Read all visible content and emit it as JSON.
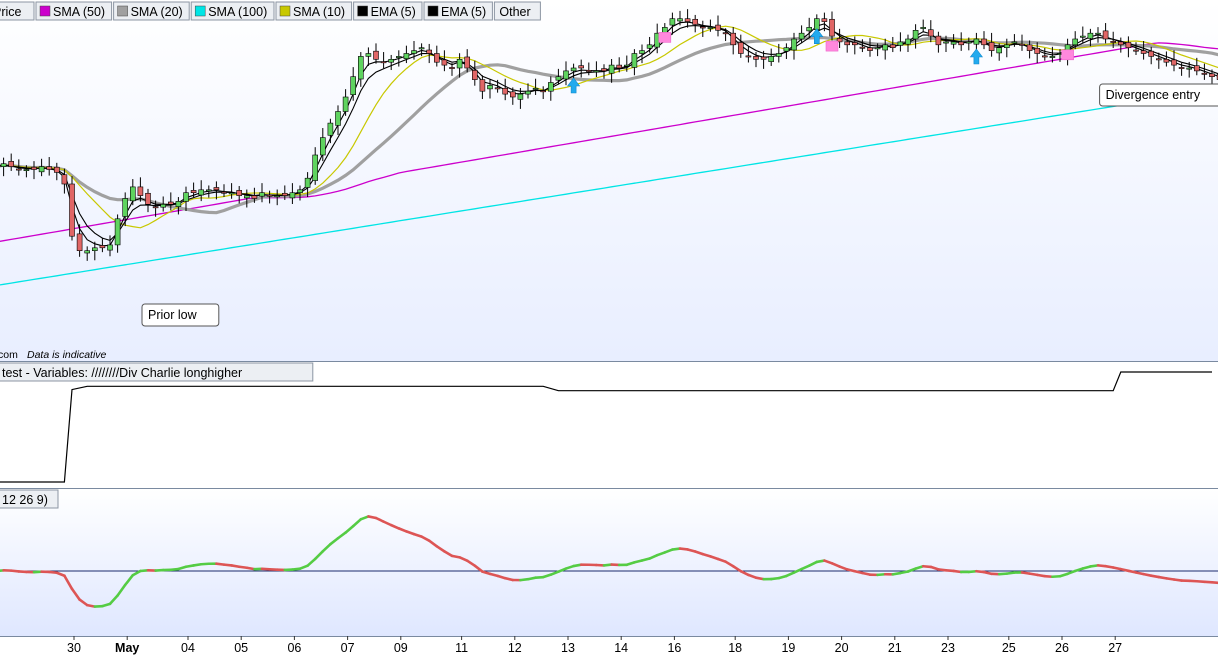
{
  "legend": {
    "items": [
      {
        "label": "Price",
        "color": null
      },
      {
        "label": "SMA (50)",
        "color": "#cc00cc"
      },
      {
        "label": "SMA (20)",
        "color": "#a0a0a0"
      },
      {
        "label": "SMA (100)",
        "color": "#00e5e5"
      },
      {
        "label": "SMA (10)",
        "color": "#c8c800"
      },
      {
        "label": "EMA (5)",
        "color": "#000000"
      },
      {
        "label": "EMA (5)",
        "color": "#000000"
      },
      {
        "label": "Other",
        "color": null
      }
    ]
  },
  "watermark": "com  Data is indicative",
  "test_panel_title": "test - Variables: ////////Div Charlie longhigher",
  "macd_panel_title": "12 26 9)",
  "annotations": [
    {
      "text": "Prior low",
      "bar": 20
    },
    {
      "text": "Divergence entry",
      "bar": 146
    }
  ],
  "colors": {
    "up_candle": "#5fd35f",
    "down_candle": "#e06666",
    "macd_up": "#55cc44",
    "macd_down": "#dd5555",
    "panel_bg": "#ffffff",
    "macd_bg_top": "#ffffff",
    "macd_bg_bottom": "#dfe7ff",
    "arrow_blue": "#22aaee",
    "marker_pink": "#ff88dd"
  },
  "chart_data": {
    "type": "candlestick",
    "x_axis_labels": [
      {
        "label": "30",
        "bar": 5,
        "bold": false
      },
      {
        "label": "May",
        "bar": 12,
        "bold": true
      },
      {
        "label": "04",
        "bar": 20,
        "bold": false
      },
      {
        "label": "05",
        "bar": 27,
        "bold": false
      },
      {
        "label": "06",
        "bar": 34,
        "bold": false
      },
      {
        "label": "07",
        "bar": 41,
        "bold": false
      },
      {
        "label": "09",
        "bar": 48,
        "bold": false
      },
      {
        "label": "11",
        "bar": 56,
        "bold": false
      },
      {
        "label": "12",
        "bar": 63,
        "bold": false
      },
      {
        "label": "13",
        "bar": 70,
        "bold": false
      },
      {
        "label": "14",
        "bar": 77,
        "bold": false
      },
      {
        "label": "16",
        "bar": 84,
        "bold": false
      },
      {
        "label": "18",
        "bar": 92,
        "bold": false
      },
      {
        "label": "19",
        "bar": 99,
        "bold": false
      },
      {
        "label": "20",
        "bar": 106,
        "bold": false
      },
      {
        "label": "21",
        "bar": 113,
        "bold": false
      },
      {
        "label": "23",
        "bar": 120,
        "bold": false
      },
      {
        "label": "25",
        "bar": 128,
        "bold": false
      },
      {
        "label": "26",
        "bar": 135,
        "bold": false
      },
      {
        "label": "27",
        "bar": 142,
        "bold": false
      }
    ],
    "price_range": [
      0,
      100
    ],
    "closes": [
      46,
      47,
      46,
      45,
      45,
      45,
      46,
      45,
      44,
      40,
      22,
      17,
      17,
      18,
      18,
      19,
      28,
      35,
      39,
      36,
      33,
      32,
      33,
      33,
      34,
      37,
      37,
      38,
      38,
      38,
      37,
      37,
      36,
      36,
      35,
      37,
      36,
      36,
      36,
      37,
      38,
      42,
      50,
      56,
      61,
      65,
      70,
      77,
      84,
      85,
      83,
      82,
      83,
      84,
      85,
      86,
      87,
      85,
      82,
      81,
      80,
      83,
      80,
      76,
      72,
      74,
      73,
      71,
      70,
      71,
      72,
      73,
      72,
      75,
      77,
      79,
      80,
      80,
      79,
      79,
      79,
      81,
      80,
      81,
      85,
      86,
      88,
      92,
      94,
      97,
      97,
      96,
      95,
      94,
      94,
      93,
      92,
      88,
      85,
      84,
      83,
      83,
      84,
      85,
      87,
      90,
      92,
      94,
      97,
      96,
      91,
      89,
      88,
      88,
      87,
      86,
      87,
      88,
      87,
      89,
      90,
      93,
      94,
      91,
      88,
      89,
      89,
      88,
      89,
      90,
      88,
      86,
      87,
      88,
      89,
      88,
      86,
      85,
      84,
      84,
      85,
      88,
      90,
      91,
      92,
      92,
      90,
      89,
      88,
      87,
      86,
      85,
      84,
      83,
      82,
      81,
      80,
      80,
      79,
      78,
      77,
      76,
      75,
      74
    ],
    "series": [
      {
        "name": "SMA (50)",
        "color": "#cc00cc"
      },
      {
        "name": "SMA (20)",
        "color": "#a0a0a0"
      },
      {
        "name": "SMA (100)",
        "color": "#00e5e5"
      },
      {
        "name": "SMA (10)",
        "color": "#c8c800"
      },
      {
        "name": "EMA (5)",
        "color": "#000000"
      }
    ],
    "blue_arrows_bars": [
      76,
      108,
      129
    ],
    "pink_markers_bars": [
      88,
      110,
      141
    ],
    "test_indicator": [
      {
        "bar": 0,
        "value": 0
      },
      {
        "bar": 9,
        "value": 0
      },
      {
        "bar": 10,
        "value": 0.84
      },
      {
        "bar": 12,
        "value": 0.87
      },
      {
        "bar": 72,
        "value": 0.87
      },
      {
        "bar": 74,
        "value": 0.83
      },
      {
        "bar": 147,
        "value": 0.83
      },
      {
        "bar": 148,
        "value": 1.0
      },
      {
        "bar": 160,
        "value": 1.0
      }
    ],
    "macd_zero": 0
  }
}
